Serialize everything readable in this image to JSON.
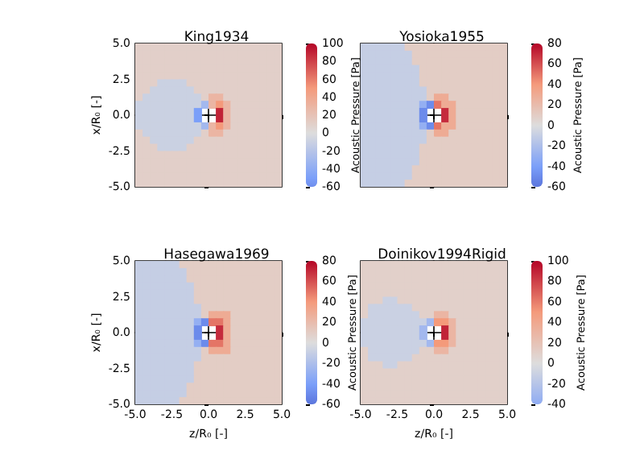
{
  "chart_data": [
    {
      "type": "heatmap",
      "title": "King1934",
      "ylabel": "x/R₀ [-]",
      "clabel": "Acoustic Pressure [Pa]",
      "tick_labels": "y",
      "x": [
        -4.75,
        -4.25,
        -3.75,
        -3.25,
        -2.75,
        -2.25,
        -1.75,
        -1.25,
        -0.75,
        -0.25,
        0.25,
        0.75,
        1.25,
        1.75,
        2.25,
        2.75,
        3.25,
        3.75,
        4.25,
        4.75
      ],
      "y": [
        4.75,
        4.25,
        3.75,
        3.25,
        2.75,
        2.25,
        1.75,
        1.25,
        0.75,
        0.25,
        -0.25,
        -0.75,
        -1.25,
        -1.75,
        -2.25,
        -2.75,
        -3.25,
        -3.75,
        -4.25,
        -4.75
      ],
      "xlim": [
        -5,
        5
      ],
      "xticks": [
        {
          "value": -5,
          "label": null
        },
        {
          "value": -2.5,
          "label": null
        },
        {
          "value": 0,
          "label": null
        },
        {
          "value": 2.5,
          "label": null
        },
        {
          "value": 5,
          "label": null
        }
      ],
      "ylim": [
        -5,
        5
      ],
      "yticks": [
        {
          "value": -5,
          "label": "-5.0"
        },
        {
          "value": -2.5,
          "label": "-2.5"
        },
        {
          "value": 0,
          "label": "0.0"
        },
        {
          "value": 2.5,
          "label": "2.5"
        },
        {
          "value": 5,
          "label": "5.0"
        }
      ],
      "clim": [
        -60,
        100
      ],
      "cticks": [
        -60,
        -40,
        -20,
        0,
        20,
        40,
        60,
        80,
        100
      ],
      "cells": [
        [
          10,
          10,
          10,
          10,
          10,
          10,
          10,
          10,
          10,
          10,
          10,
          10,
          10,
          10,
          10,
          10,
          10,
          10,
          10,
          10
        ],
        [
          10,
          10,
          10,
          10,
          10,
          10,
          10,
          10,
          10,
          10,
          10,
          10,
          10,
          10,
          10,
          10,
          10,
          10,
          10,
          10
        ],
        [
          10,
          10,
          10,
          10,
          10,
          10,
          10,
          10,
          10,
          10,
          10,
          10,
          10,
          10,
          10,
          10,
          10,
          10,
          10,
          10
        ],
        [
          10,
          10,
          10,
          10,
          10,
          10,
          10,
          10,
          10,
          10,
          10,
          10,
          10,
          10,
          10,
          10,
          10,
          10,
          10,
          10
        ],
        [
          10,
          10,
          10,
          10,
          10,
          10,
          10,
          10,
          10,
          10,
          10,
          10,
          10,
          10,
          10,
          10,
          10,
          10,
          10,
          10
        ],
        [
          10,
          10,
          10,
          -10,
          -10,
          -10,
          -10,
          10,
          10,
          10,
          10,
          10,
          10,
          10,
          10,
          10,
          10,
          10,
          10,
          10
        ],
        [
          10,
          10,
          -10,
          -10,
          -10,
          -10,
          -10,
          -10,
          10,
          10,
          10,
          10,
          10,
          10,
          10,
          10,
          10,
          10,
          10,
          10
        ],
        [
          10,
          -10,
          -10,
          -10,
          -10,
          -10,
          -10,
          -10,
          -10,
          10,
          30,
          30,
          10,
          10,
          10,
          10,
          10,
          10,
          10,
          10
        ],
        [
          -10,
          -10,
          -10,
          -10,
          -10,
          -10,
          -10,
          -10,
          -10,
          -30,
          30,
          50,
          30,
          10,
          10,
          10,
          10,
          10,
          10,
          10
        ],
        [
          -10,
          -10,
          -10,
          -10,
          -10,
          -10,
          -10,
          -10,
          -50,
          null,
          null,
          90,
          30,
          10,
          10,
          10,
          10,
          10,
          10,
          10
        ],
        [
          -10,
          -10,
          -10,
          -10,
          -10,
          -10,
          -10,
          -10,
          -50,
          null,
          null,
          90,
          30,
          10,
          10,
          10,
          10,
          10,
          10,
          10
        ],
        [
          -10,
          -10,
          -10,
          -10,
          -10,
          -10,
          -10,
          -10,
          -10,
          -30,
          30,
          50,
          30,
          10,
          10,
          10,
          10,
          10,
          10,
          10
        ],
        [
          10,
          -10,
          -10,
          -10,
          -10,
          -10,
          -10,
          -10,
          -10,
          10,
          30,
          30,
          10,
          10,
          10,
          10,
          10,
          10,
          10,
          10
        ],
        [
          10,
          10,
          -10,
          -10,
          -10,
          -10,
          -10,
          -10,
          10,
          10,
          10,
          10,
          10,
          10,
          10,
          10,
          10,
          10,
          10,
          10
        ],
        [
          10,
          10,
          10,
          -10,
          -10,
          -10,
          -10,
          10,
          10,
          10,
          10,
          10,
          10,
          10,
          10,
          10,
          10,
          10,
          10,
          10
        ],
        [
          10,
          10,
          10,
          10,
          10,
          10,
          10,
          10,
          10,
          10,
          10,
          10,
          10,
          10,
          10,
          10,
          10,
          10,
          10,
          10
        ],
        [
          10,
          10,
          10,
          10,
          10,
          10,
          10,
          10,
          10,
          10,
          10,
          10,
          10,
          10,
          10,
          10,
          10,
          10,
          10,
          10
        ],
        [
          10,
          10,
          10,
          10,
          10,
          10,
          10,
          10,
          10,
          10,
          10,
          10,
          10,
          10,
          10,
          10,
          10,
          10,
          10,
          10
        ],
        [
          10,
          10,
          10,
          10,
          10,
          10,
          10,
          10,
          10,
          10,
          10,
          10,
          10,
          10,
          10,
          10,
          10,
          10,
          10,
          10
        ],
        [
          10,
          10,
          10,
          10,
          10,
          10,
          10,
          10,
          10,
          10,
          10,
          10,
          10,
          10,
          10,
          10,
          10,
          10,
          10,
          10
        ]
      ]
    },
    {
      "type": "heatmap",
      "title": "Yosioka1955",
      "clabel": "Acoustic Pressure [Pa]",
      "tick_labels": false,
      "x": [
        -4.75,
        -4.25,
        -3.75,
        -3.25,
        -2.75,
        -2.25,
        -1.75,
        -1.25,
        -0.75,
        -0.25,
        0.25,
        0.75,
        1.25,
        1.75,
        2.25,
        2.75,
        3.25,
        3.75,
        4.25,
        4.75
      ],
      "y": [
        4.75,
        4.25,
        3.75,
        3.25,
        2.75,
        2.25,
        1.75,
        1.25,
        0.75,
        0.25,
        -0.25,
        -0.75,
        -1.25,
        -1.75,
        -2.25,
        -2.75,
        -3.25,
        -3.75,
        -4.25,
        -4.75
      ],
      "xlim": [
        -5,
        5
      ],
      "xticks": [
        {
          "value": -5,
          "label": null
        },
        {
          "value": -2.5,
          "label": null
        },
        {
          "value": 0,
          "label": null
        },
        {
          "value": 2.5,
          "label": null
        },
        {
          "value": 5,
          "label": null
        }
      ],
      "ylim": [
        -5,
        5
      ],
      "yticks": [
        {
          "value": -5,
          "label": null
        },
        {
          "value": -2.5,
          "label": null
        },
        {
          "value": 0,
          "label": null
        },
        {
          "value": 2.5,
          "label": null
        },
        {
          "value": 5,
          "label": null
        }
      ],
      "clim": [
        -60,
        80
      ],
      "cticks": [
        -60,
        -40,
        -20,
        0,
        20,
        40,
        60,
        80
      ],
      "cells": [
        [
          -10,
          -10,
          -10,
          -10,
          -10,
          -10,
          10,
          10,
          10,
          10,
          10,
          10,
          10,
          10,
          10,
          10,
          10,
          10,
          10,
          10
        ],
        [
          -10,
          -10,
          -10,
          -10,
          -10,
          -10,
          -10,
          10,
          10,
          10,
          10,
          10,
          10,
          10,
          10,
          10,
          10,
          10,
          10,
          10
        ],
        [
          -10,
          -10,
          -10,
          -10,
          -10,
          -10,
          -10,
          10,
          10,
          10,
          10,
          10,
          10,
          10,
          10,
          10,
          10,
          10,
          10,
          10
        ],
        [
          -10,
          -10,
          -10,
          -10,
          -10,
          -10,
          -10,
          -10,
          10,
          10,
          10,
          10,
          10,
          10,
          10,
          10,
          10,
          10,
          10,
          10
        ],
        [
          -10,
          -10,
          -10,
          -10,
          -10,
          -10,
          -10,
          -10,
          10,
          10,
          10,
          10,
          10,
          10,
          10,
          10,
          10,
          10,
          10,
          10
        ],
        [
          -10,
          -10,
          -10,
          -10,
          -10,
          -10,
          -10,
          -10,
          10,
          10,
          10,
          10,
          10,
          10,
          10,
          10,
          10,
          10,
          10,
          10
        ],
        [
          -10,
          -10,
          -10,
          -10,
          -10,
          -10,
          -10,
          -10,
          -10,
          10,
          10,
          10,
          10,
          10,
          10,
          10,
          10,
          10,
          10,
          10
        ],
        [
          -10,
          -10,
          -10,
          -10,
          -10,
          -10,
          -10,
          -10,
          -10,
          10,
          30,
          30,
          10,
          10,
          10,
          10,
          10,
          10,
          10,
          10
        ],
        [
          -10,
          -10,
          -10,
          -10,
          -10,
          -10,
          -10,
          -10,
          -30,
          -50,
          50,
          30,
          30,
          10,
          10,
          10,
          10,
          10,
          10,
          10
        ],
        [
          -10,
          -10,
          -10,
          -10,
          -10,
          -10,
          -10,
          -10,
          -50,
          null,
          null,
          70,
          30,
          10,
          10,
          10,
          10,
          10,
          10,
          10
        ],
        [
          -10,
          -10,
          -10,
          -10,
          -10,
          -10,
          -10,
          -10,
          -50,
          null,
          null,
          70,
          30,
          10,
          10,
          10,
          10,
          10,
          10,
          10
        ],
        [
          -10,
          -10,
          -10,
          -10,
          -10,
          -10,
          -10,
          -10,
          -30,
          -50,
          50,
          30,
          30,
          10,
          10,
          10,
          10,
          10,
          10,
          10
        ],
        [
          -10,
          -10,
          -10,
          -10,
          -10,
          -10,
          -10,
          -10,
          -10,
          10,
          30,
          30,
          10,
          10,
          10,
          10,
          10,
          10,
          10,
          10
        ],
        [
          -10,
          -10,
          -10,
          -10,
          -10,
          -10,
          -10,
          -10,
          -10,
          10,
          10,
          10,
          10,
          10,
          10,
          10,
          10,
          10,
          10,
          10
        ],
        [
          -10,
          -10,
          -10,
          -10,
          -10,
          -10,
          -10,
          -10,
          10,
          10,
          10,
          10,
          10,
          10,
          10,
          10,
          10,
          10,
          10,
          10
        ],
        [
          -10,
          -10,
          -10,
          -10,
          -10,
          -10,
          -10,
          -10,
          10,
          10,
          10,
          10,
          10,
          10,
          10,
          10,
          10,
          10,
          10,
          10
        ],
        [
          -10,
          -10,
          -10,
          -10,
          -10,
          -10,
          -10,
          -10,
          10,
          10,
          10,
          10,
          10,
          10,
          10,
          10,
          10,
          10,
          10,
          10
        ],
        [
          -10,
          -10,
          -10,
          -10,
          -10,
          -10,
          -10,
          10,
          10,
          10,
          10,
          10,
          10,
          10,
          10,
          10,
          10,
          10,
          10,
          10
        ],
        [
          -10,
          -10,
          -10,
          -10,
          -10,
          -10,
          -10,
          10,
          10,
          10,
          10,
          10,
          10,
          10,
          10,
          10,
          10,
          10,
          10,
          10
        ],
        [
          -10,
          -10,
          -10,
          -10,
          -10,
          -10,
          10,
          10,
          10,
          10,
          10,
          10,
          10,
          10,
          10,
          10,
          10,
          10,
          10,
          10
        ]
      ]
    },
    {
      "type": "heatmap",
      "title": "Hasegawa1969",
      "xlabel": "z/R₀ [-]",
      "ylabel": "x/R₀ [-]",
      "clabel": "Acoustic Pressure [Pa]",
      "x": [
        -4.75,
        -4.25,
        -3.75,
        -3.25,
        -2.75,
        -2.25,
        -1.75,
        -1.25,
        -0.75,
        -0.25,
        0.25,
        0.75,
        1.25,
        1.75,
        2.25,
        2.75,
        3.25,
        3.75,
        4.25,
        4.75
      ],
      "y": [
        4.75,
        4.25,
        3.75,
        3.25,
        2.75,
        2.25,
        1.75,
        1.25,
        0.75,
        0.25,
        -0.25,
        -0.75,
        -1.25,
        -1.75,
        -2.25,
        -2.75,
        -3.25,
        -3.75,
        -4.25,
        -4.75
      ],
      "xlim": [
        -5,
        5
      ],
      "xticks": [
        {
          "value": -5,
          "label": "-5.0"
        },
        {
          "value": -2.5,
          "label": "-2.5"
        },
        {
          "value": 0,
          "label": "0.0"
        },
        {
          "value": 2.5,
          "label": "2.5"
        },
        {
          "value": 5,
          "label": "5.0"
        }
      ],
      "ylim": [
        -5,
        5
      ],
      "yticks": [
        {
          "value": -5,
          "label": "-5.0"
        },
        {
          "value": -2.5,
          "label": "-2.5"
        },
        {
          "value": 0,
          "label": "0.0"
        },
        {
          "value": 2.5,
          "label": "2.5"
        },
        {
          "value": 5,
          "label": "5.0"
        }
      ],
      "clim": [
        -60,
        80
      ],
      "cticks": [
        -60,
        -40,
        -20,
        0,
        20,
        40,
        60,
        80
      ],
      "cells": [
        [
          -10,
          -10,
          -10,
          -10,
          -10,
          -10,
          10,
          10,
          10,
          10,
          10,
          10,
          10,
          10,
          10,
          10,
          10,
          10,
          10,
          10
        ],
        [
          -10,
          -10,
          -10,
          -10,
          -10,
          -10,
          -10,
          10,
          10,
          10,
          10,
          10,
          10,
          10,
          10,
          10,
          10,
          10,
          10,
          10
        ],
        [
          -10,
          -10,
          -10,
          -10,
          -10,
          -10,
          -10,
          10,
          10,
          10,
          10,
          10,
          10,
          10,
          10,
          10,
          10,
          10,
          10,
          10
        ],
        [
          -10,
          -10,
          -10,
          -10,
          -10,
          -10,
          -10,
          -10,
          10,
          10,
          10,
          10,
          10,
          10,
          10,
          10,
          10,
          10,
          10,
          10
        ],
        [
          -10,
          -10,
          -10,
          -10,
          -10,
          -10,
          -10,
          -10,
          10,
          10,
          10,
          10,
          10,
          10,
          10,
          10,
          10,
          10,
          10,
          10
        ],
        [
          -10,
          -10,
          -10,
          -10,
          -10,
          -10,
          -10,
          -10,
          10,
          10,
          10,
          10,
          10,
          10,
          10,
          10,
          10,
          10,
          10,
          10
        ],
        [
          -10,
          -10,
          -10,
          -10,
          -10,
          -10,
          -10,
          -10,
          -10,
          10,
          10,
          10,
          10,
          10,
          10,
          10,
          10,
          10,
          10,
          10
        ],
        [
          -10,
          -10,
          -10,
          -10,
          -10,
          -10,
          -10,
          -10,
          -10,
          10,
          30,
          30,
          30,
          10,
          10,
          10,
          10,
          10,
          10,
          10
        ],
        [
          -10,
          -10,
          -10,
          -10,
          -10,
          -10,
          -10,
          -10,
          -30,
          -50,
          50,
          50,
          30,
          10,
          10,
          10,
          10,
          10,
          10,
          10
        ],
        [
          -10,
          -10,
          -10,
          -10,
          -10,
          -10,
          -10,
          -10,
          -50,
          null,
          null,
          70,
          30,
          10,
          10,
          10,
          10,
          10,
          10,
          10
        ],
        [
          -10,
          -10,
          -10,
          -10,
          -10,
          -10,
          -10,
          -10,
          -50,
          null,
          null,
          70,
          30,
          10,
          10,
          10,
          10,
          10,
          10,
          10
        ],
        [
          -10,
          -10,
          -10,
          -10,
          -10,
          -10,
          -10,
          -10,
          -30,
          -50,
          50,
          50,
          30,
          10,
          10,
          10,
          10,
          10,
          10,
          10
        ],
        [
          -10,
          -10,
          -10,
          -10,
          -10,
          -10,
          -10,
          -10,
          -10,
          10,
          30,
          30,
          30,
          10,
          10,
          10,
          10,
          10,
          10,
          10
        ],
        [
          -10,
          -10,
          -10,
          -10,
          -10,
          -10,
          -10,
          -10,
          -10,
          10,
          10,
          10,
          10,
          10,
          10,
          10,
          10,
          10,
          10,
          10
        ],
        [
          -10,
          -10,
          -10,
          -10,
          -10,
          -10,
          -10,
          -10,
          10,
          10,
          10,
          10,
          10,
          10,
          10,
          10,
          10,
          10,
          10,
          10
        ],
        [
          -10,
          -10,
          -10,
          -10,
          -10,
          -10,
          -10,
          -10,
          10,
          10,
          10,
          10,
          10,
          10,
          10,
          10,
          10,
          10,
          10,
          10
        ],
        [
          -10,
          -10,
          -10,
          -10,
          -10,
          -10,
          -10,
          -10,
          10,
          10,
          10,
          10,
          10,
          10,
          10,
          10,
          10,
          10,
          10,
          10
        ],
        [
          -10,
          -10,
          -10,
          -10,
          -10,
          -10,
          -10,
          10,
          10,
          10,
          10,
          10,
          10,
          10,
          10,
          10,
          10,
          10,
          10,
          10
        ],
        [
          -10,
          -10,
          -10,
          -10,
          -10,
          -10,
          -10,
          10,
          10,
          10,
          10,
          10,
          10,
          10,
          10,
          10,
          10,
          10,
          10,
          10
        ],
        [
          -10,
          -10,
          -10,
          -10,
          -10,
          -10,
          10,
          10,
          10,
          10,
          10,
          10,
          10,
          10,
          10,
          10,
          10,
          10,
          10,
          10
        ]
      ]
    },
    {
      "type": "heatmap",
      "title": "Doinikov1994Rigid",
      "xlabel": "z/R₀ [-]",
      "clabel": "Acoustic Pressure [Pa]",
      "tick_labels": "x",
      "x": [
        -4.75,
        -4.25,
        -3.75,
        -3.25,
        -2.75,
        -2.25,
        -1.75,
        -1.25,
        -0.75,
        -0.25,
        0.25,
        0.75,
        1.25,
        1.75,
        2.25,
        2.75,
        3.25,
        3.75,
        4.25,
        4.75
      ],
      "y": [
        4.75,
        4.25,
        3.75,
        3.25,
        2.75,
        2.25,
        1.75,
        1.25,
        0.75,
        0.25,
        -0.25,
        -0.75,
        -1.25,
        -1.75,
        -2.25,
        -2.75,
        -3.25,
        -3.75,
        -4.25,
        -4.75
      ],
      "xlim": [
        -5,
        5
      ],
      "xticks": [
        {
          "value": -5,
          "label": "-5.0"
        },
        {
          "value": -2.5,
          "label": "-2.5"
        },
        {
          "value": 0,
          "label": "0.0"
        },
        {
          "value": 2.5,
          "label": "2.5"
        },
        {
          "value": 5,
          "label": "5.0"
        }
      ],
      "ylim": [
        -5,
        5
      ],
      "yticks": [
        {
          "value": -5,
          "label": null
        },
        {
          "value": -2.5,
          "label": null
        },
        {
          "value": 0,
          "label": null
        },
        {
          "value": 2.5,
          "label": null
        },
        {
          "value": 5,
          "label": null
        }
      ],
      "clim": [
        -40,
        100
      ],
      "cticks": [
        -40,
        -20,
        0,
        20,
        40,
        60,
        80,
        100
      ],
      "cells": [
        [
          10,
          10,
          10,
          10,
          10,
          10,
          10,
          10,
          10,
          10,
          10,
          10,
          10,
          10,
          10,
          10,
          10,
          10,
          10,
          10
        ],
        [
          10,
          10,
          10,
          10,
          10,
          10,
          10,
          10,
          10,
          10,
          10,
          10,
          10,
          10,
          10,
          10,
          10,
          10,
          10,
          10
        ],
        [
          10,
          10,
          10,
          10,
          10,
          10,
          10,
          10,
          10,
          10,
          10,
          10,
          10,
          10,
          10,
          10,
          10,
          10,
          10,
          10
        ],
        [
          10,
          10,
          10,
          10,
          10,
          10,
          10,
          10,
          10,
          10,
          10,
          10,
          10,
          10,
          10,
          10,
          10,
          10,
          10,
          10
        ],
        [
          10,
          10,
          10,
          10,
          10,
          10,
          10,
          10,
          10,
          10,
          10,
          10,
          10,
          10,
          10,
          10,
          10,
          10,
          10,
          10
        ],
        [
          10,
          10,
          10,
          -10,
          -10,
          10,
          10,
          10,
          10,
          10,
          10,
          10,
          10,
          10,
          10,
          10,
          10,
          10,
          10,
          10
        ],
        [
          10,
          -10,
          -10,
          -10,
          -10,
          -10,
          -10,
          10,
          10,
          10,
          10,
          10,
          10,
          10,
          10,
          10,
          10,
          10,
          10,
          10
        ],
        [
          10,
          -10,
          -10,
          -10,
          -10,
          -10,
          -10,
          -10,
          10,
          10,
          30,
          30,
          10,
          10,
          10,
          10,
          10,
          10,
          10,
          10
        ],
        [
          -10,
          -10,
          -10,
          -10,
          -10,
          -10,
          -10,
          -10,
          -10,
          -30,
          50,
          50,
          30,
          10,
          10,
          10,
          10,
          10,
          10,
          10
        ],
        [
          -10,
          -10,
          -10,
          -10,
          -10,
          -10,
          -10,
          -10,
          -30,
          null,
          null,
          90,
          30,
          10,
          10,
          10,
          10,
          10,
          10,
          10
        ],
        [
          -10,
          -10,
          -10,
          -10,
          -10,
          -10,
          -10,
          -10,
          -30,
          null,
          null,
          90,
          30,
          10,
          10,
          10,
          10,
          10,
          10,
          10
        ],
        [
          -10,
          -10,
          -10,
          -10,
          -10,
          -10,
          -10,
          -10,
          -10,
          -30,
          50,
          50,
          30,
          10,
          10,
          10,
          10,
          10,
          10,
          10
        ],
        [
          10,
          -10,
          -10,
          -10,
          -10,
          -10,
          -10,
          -10,
          10,
          10,
          30,
          30,
          10,
          10,
          10,
          10,
          10,
          10,
          10,
          10
        ],
        [
          10,
          -10,
          -10,
          -10,
          -10,
          -10,
          -10,
          10,
          10,
          10,
          10,
          10,
          10,
          10,
          10,
          10,
          10,
          10,
          10,
          10
        ],
        [
          10,
          10,
          10,
          -10,
          -10,
          10,
          10,
          10,
          10,
          10,
          10,
          10,
          10,
          10,
          10,
          10,
          10,
          10,
          10,
          10
        ],
        [
          10,
          10,
          10,
          10,
          10,
          10,
          10,
          10,
          10,
          10,
          10,
          10,
          10,
          10,
          10,
          10,
          10,
          10,
          10,
          10
        ],
        [
          10,
          10,
          10,
          10,
          10,
          10,
          10,
          10,
          10,
          10,
          10,
          10,
          10,
          10,
          10,
          10,
          10,
          10,
          10,
          10
        ],
        [
          10,
          10,
          10,
          10,
          10,
          10,
          10,
          10,
          10,
          10,
          10,
          10,
          10,
          10,
          10,
          10,
          10,
          10,
          10,
          10
        ],
        [
          10,
          10,
          10,
          10,
          10,
          10,
          10,
          10,
          10,
          10,
          10,
          10,
          10,
          10,
          10,
          10,
          10,
          10,
          10,
          10
        ],
        [
          10,
          10,
          10,
          10,
          10,
          10,
          10,
          10,
          10,
          10,
          10,
          10,
          10,
          10,
          10,
          10,
          10,
          10,
          10,
          10
        ]
      ]
    }
  ]
}
